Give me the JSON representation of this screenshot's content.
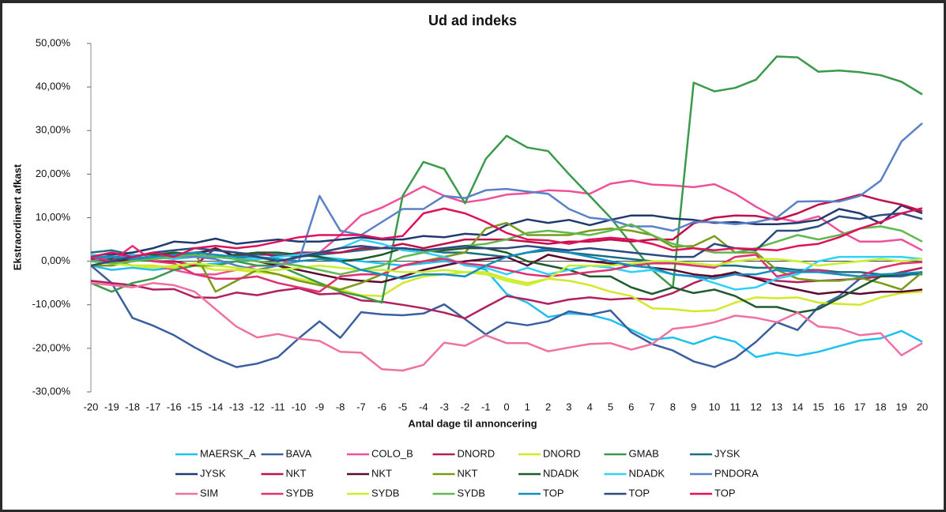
{
  "chart_data": {
    "type": "line",
    "title": "Ud ad indeks",
    "x_label": "Antal dage til annoncering",
    "y_label": "Ekstraordinært afkast",
    "x": [
      -20,
      -19,
      -18,
      -17,
      -16,
      -15,
      -14,
      -13,
      -12,
      -11,
      -10,
      -9,
      -8,
      -7,
      -6,
      -5,
      -4,
      -3,
      -2,
      -1,
      0,
      1,
      2,
      3,
      4,
      5,
      6,
      7,
      8,
      9,
      10,
      11,
      12,
      13,
      14,
      15,
      16,
      17,
      18,
      19,
      20
    ],
    "xlim": [
      -20,
      20
    ],
    "xticks": [
      -20,
      -19,
      -18,
      -17,
      -16,
      -15,
      -14,
      -13,
      -12,
      -11,
      -10,
      -9,
      -8,
      -7,
      -6,
      -5,
      -4,
      -3,
      -2,
      -1,
      0,
      1,
      2,
      3,
      4,
      5,
      6,
      7,
      8,
      9,
      10,
      11,
      12,
      13,
      14,
      15,
      16,
      17,
      18,
      19,
      20
    ],
    "ylim": [
      -30,
      50
    ],
    "yticks": [
      {
        "value": -30,
        "label": "-30,00%"
      },
      {
        "value": -20,
        "label": "-20,00%"
      },
      {
        "value": -10,
        "label": "-10,00%"
      },
      {
        "value": 0,
        "label": "0,00%"
      },
      {
        "value": 10,
        "label": "10,00%"
      },
      {
        "value": 20,
        "label": "20,00%"
      },
      {
        "value": 30,
        "label": "30,00%"
      },
      {
        "value": 40,
        "label": "40,00%"
      },
      {
        "value": 50,
        "label": "50,00%"
      }
    ],
    "grid": false,
    "legend": "bottom",
    "series": [
      {
        "name": "MAERSK_A",
        "color": "#1fc0f0",
        "values": [
          -1,
          -2,
          -1.5,
          -2,
          -1.5,
          -1,
          -0.5,
          0,
          0.5,
          1,
          1.5,
          1,
          0.5,
          0,
          -0.5,
          -1,
          -0.5,
          0,
          -0.5,
          -2,
          -7.5,
          -9.5,
          -12.8,
          -12,
          -12.3,
          -13.5,
          -15.7,
          -18,
          -17.5,
          -19,
          -17.3,
          -18.5,
          -22,
          -21,
          -21.7,
          -20.8,
          -19.5,
          -18.2,
          -17.7,
          -16,
          -18.5
        ]
      },
      {
        "name": "BAVA",
        "color": "#3a5fa0",
        "values": [
          -1,
          -5,
          -13,
          -14.8,
          -17,
          -19.8,
          -22.3,
          -24.3,
          -23.5,
          -22,
          -17.7,
          -13.8,
          -17.6,
          -11.7,
          -12.2,
          -12.4,
          -12,
          -9.9,
          -13.3,
          -16.8,
          -14,
          -14.7,
          -13.8,
          -11.5,
          -12.3,
          -11.3,
          -16.3,
          -19,
          -20.5,
          -23,
          -24.3,
          -22.2,
          -18.5,
          -14,
          -15.8,
          -10.5,
          -8,
          -4,
          -3.5,
          -3.5,
          -2.5
        ]
      },
      {
        "name": "COLO_B",
        "color": "#f0509a",
        "values": [
          1,
          0,
          -1,
          -1,
          -2,
          -3,
          -3,
          -2,
          -1,
          -1,
          1,
          2,
          6,
          10.5,
          12.3,
          14.7,
          17.2,
          15,
          13.5,
          14.2,
          15.3,
          15.6,
          16.3,
          16.1,
          15.5,
          17.8,
          18.5,
          17.6,
          17.4,
          17,
          17.7,
          15.5,
          12.5,
          10,
          9,
          10.3,
          7,
          4.5,
          4.5,
          5,
          2.5
        ]
      },
      {
        "name": "DNORD",
        "color": "#b0205f",
        "values": [
          -4.5,
          -5,
          -5.5,
          -6.5,
          -6.4,
          -8.3,
          -8.4,
          -7.2,
          -7.8,
          -6.8,
          -6.2,
          -7.6,
          -7.4,
          -9,
          -9.3,
          -10,
          -10.8,
          -11.8,
          -13.1,
          -10.5,
          -8,
          -8.8,
          -9.8,
          -8.8,
          -8.3,
          -8.8,
          -8.5,
          -8.8,
          -7.3,
          -5,
          -3.3,
          -3,
          -3.8,
          -4.5,
          -4.8,
          -4.5,
          -4.3,
          -4,
          -3.5,
          -2.5,
          -1.5
        ]
      },
      {
        "name": "DNORD",
        "color": "#d4e82a",
        "values": [
          0,
          -0.5,
          -1,
          -1,
          -1.5,
          -1,
          -2,
          -2,
          -2.5,
          -3,
          -4,
          -5,
          -6.5,
          -7.8,
          -8,
          -5,
          -3.5,
          -3,
          -2.5,
          -2.5,
          -4,
          -5,
          -4,
          -4.5,
          -5.5,
          -7,
          -8,
          -10.8,
          -11,
          -11.5,
          -11.3,
          -9.5,
          -8.3,
          -8.5,
          -8.3,
          -9.5,
          -9.8,
          -10,
          -8.3,
          -7.3,
          -7
        ]
      },
      {
        "name": "GMAB",
        "color": "#3a9a4a",
        "values": [
          -5,
          -7,
          -5,
          -4,
          -2,
          -1,
          -1,
          0,
          -1,
          -1,
          -3,
          -5,
          -7,
          -8,
          -9.5,
          15,
          22.8,
          21.2,
          13.3,
          23.5,
          28.8,
          26.1,
          25.3,
          20,
          15,
          10,
          4,
          -2,
          -6,
          41,
          39,
          39.8,
          41.7,
          47,
          46.8,
          43.5,
          43.8,
          43.4,
          42.7,
          41.2,
          38.3
        ]
      },
      {
        "name": "JYSK",
        "color": "#1a6e80",
        "values": [
          2,
          2.5,
          1.5,
          1,
          1.5,
          2,
          2.5,
          2,
          1.5,
          1.5,
          1,
          1.5,
          2,
          2.5,
          3,
          3,
          2.5,
          2,
          2,
          1.5,
          1,
          2,
          2.5,
          2,
          1.5,
          1,
          0.5,
          0,
          -0.5,
          -0.5,
          -1,
          -1,
          -1.5,
          -1.5,
          -2,
          -2,
          -2.5,
          -2.5,
          -3,
          -3,
          -3
        ]
      },
      {
        "name": "JYSK",
        "color": "#1e3a6e",
        "values": [
          1,
          1.5,
          2,
          3,
          4.5,
          4.2,
          5.2,
          4,
          4.5,
          5,
          4.5,
          4.5,
          5,
          5.5,
          5,
          5,
          5.8,
          5.5,
          6.3,
          6,
          8.3,
          9.6,
          8.8,
          9.5,
          8.3,
          9.5,
          10.5,
          10.5,
          9.8,
          9.5,
          8.8,
          9,
          8.5,
          8.5,
          8.8,
          9.5,
          12,
          11,
          8.7,
          12.8,
          11
        ]
      },
      {
        "name": "NKT",
        "color": "#c0104a",
        "values": [
          0.5,
          0,
          1,
          0,
          0,
          -1,
          3,
          1,
          2,
          1,
          2,
          2,
          2,
          3,
          3,
          4,
          3,
          4,
          5,
          5,
          5,
          4.5,
          4,
          4.5,
          4.5,
          5,
          4.5,
          5,
          5,
          8.7,
          10,
          10.5,
          10.4,
          9.5,
          11,
          13,
          14,
          15.3,
          14,
          13,
          11.5
        ]
      },
      {
        "name": "NKT",
        "color": "#5a0a30",
        "values": [
          1,
          0,
          0.5,
          1,
          2,
          1.5,
          3,
          1,
          0,
          -1,
          -2,
          -3,
          -4,
          -4.5,
          -4.8,
          -3.5,
          -2,
          -1,
          0,
          0.5,
          1,
          -1,
          1.5,
          0.5,
          0,
          -0.5,
          -1,
          -1.5,
          -2,
          -3,
          -3.5,
          -2.5,
          -4,
          -5.5,
          -6.5,
          -7.5,
          -7,
          -7.5,
          -7,
          -7,
          -6.5
        ]
      },
      {
        "name": "NKT",
        "color": "#7a9a1a",
        "values": [
          -1,
          -1,
          0,
          0.5,
          1,
          2,
          -7,
          -4.5,
          -2,
          -3,
          -4.5,
          -5.5,
          -6.5,
          -5,
          -3,
          -1,
          0,
          1,
          2,
          7.5,
          8.8,
          6,
          6,
          6,
          7,
          7.5,
          7,
          6,
          3.3,
          3.5,
          5.8,
          2,
          2,
          -2,
          -4,
          -4.5,
          -4.5,
          -3.8,
          -5,
          -6.5,
          -2.5
        ]
      },
      {
        "name": "NDADK",
        "color": "#1e5a2e",
        "values": [
          1,
          0.5,
          1,
          1.5,
          2,
          1.5,
          1,
          1.5,
          2,
          2,
          1.5,
          1,
          0,
          0.5,
          1.5,
          3,
          2.5,
          2.5,
          3,
          3,
          2,
          0,
          -1,
          -2,
          -3.5,
          -3.5,
          -6,
          -7.5,
          -6,
          -7.3,
          -6.5,
          -8,
          -10.5,
          -10.5,
          -11.8,
          -11,
          -8.5,
          -6,
          -3.5,
          -3,
          -2.5
        ]
      },
      {
        "name": "NDADK",
        "color": "#30d0f8",
        "values": [
          1.5,
          1,
          1.5,
          1,
          0.5,
          1,
          1,
          0.5,
          0.5,
          1,
          1.5,
          2,
          3,
          5,
          4,
          2.5,
          2,
          1,
          -1,
          -1.5,
          -3,
          -1.5,
          -3,
          -2,
          -1,
          -1.5,
          -2.5,
          -2,
          -3,
          -3.5,
          -5,
          -6.5,
          -6,
          -4,
          -3,
          0,
          1,
          1,
          1,
          1,
          0.5
        ]
      },
      {
        "name": "PNDORA",
        "color": "#5a80c8",
        "values": [
          0,
          1,
          1,
          0.5,
          1,
          1,
          0.5,
          -1,
          -2,
          -1,
          0,
          15,
          7,
          6,
          9,
          12,
          12,
          15,
          14.5,
          16.3,
          16.6,
          16,
          15.5,
          12,
          10,
          9.5,
          8,
          8,
          7,
          9,
          9,
          8.5,
          9,
          10,
          13.7,
          13.8,
          13.7,
          15,
          18.5,
          27.5,
          31.7
        ]
      },
      {
        "name": "SIM",
        "color": "#f070a0",
        "values": [
          -5,
          -5.5,
          -6,
          -5,
          -5.5,
          -7,
          -11,
          -15,
          -17.5,
          -16.7,
          -17.8,
          -18.3,
          -20.8,
          -21,
          -24.8,
          -25.1,
          -23.8,
          -18.7,
          -19.4,
          -17,
          -18.8,
          -18.8,
          -20.7,
          -19.8,
          -19,
          -18.8,
          -20.3,
          -19,
          -15.5,
          -15,
          -14,
          -12.5,
          -13,
          -14,
          -11.8,
          -15,
          -15.4,
          -17,
          -16.5,
          -21.6,
          -18.8
        ]
      },
      {
        "name": "SYDB",
        "color": "#e03070",
        "values": [
          1,
          0,
          3.5,
          0,
          -0.5,
          -3,
          -4,
          -4,
          -3.5,
          -5,
          -6,
          -7,
          -3.5,
          -3,
          -3,
          -1,
          0,
          0.5,
          -0.5,
          -1,
          -2,
          -3,
          -3.5,
          -3,
          -2.5,
          -2,
          -1,
          -0.5,
          -0.5,
          -1,
          -1.5,
          1,
          1.5,
          -3.5,
          -2.5,
          -2,
          -3,
          -3.5,
          -1.5,
          -0.5,
          -0.2
        ]
      },
      {
        "name": "SYDB",
        "color": "#c8f030",
        "values": [
          0,
          -0.5,
          -1,
          -1.5,
          -1,
          -0.5,
          -1,
          -1.5,
          -2,
          -2,
          -1.5,
          -1,
          -1.5,
          -2,
          -2,
          -2.5,
          -2.5,
          -2,
          -2.5,
          -3,
          -4.5,
          -5.5,
          -4,
          -1,
          -1,
          -1,
          -0.5,
          0,
          0,
          -0.5,
          -1,
          0,
          0.5,
          0.5,
          0,
          -1,
          -0.5,
          0,
          0.5,
          0,
          0.5
        ]
      },
      {
        "name": "SYDB",
        "color": "#60b850",
        "values": [
          0,
          -0.5,
          0,
          0.5,
          1,
          1.5,
          1,
          0.5,
          0,
          -0.5,
          -1,
          -2,
          -3,
          -2,
          -1,
          1,
          2,
          3,
          3.5,
          4,
          5,
          6.5,
          7,
          6.5,
          6,
          7,
          8.5,
          6,
          4,
          3,
          2,
          2,
          3,
          4.5,
          6,
          5,
          6,
          7.5,
          8,
          7,
          4.5
        ]
      },
      {
        "name": "TOP",
        "color": "#1090c0",
        "values": [
          1,
          1,
          0.5,
          1,
          1.5,
          2,
          1.5,
          1,
          1,
          0.5,
          0,
          0.5,
          0,
          -2,
          -3,
          -4,
          -3,
          -3,
          -3.5,
          -1,
          1,
          2,
          3,
          2,
          1,
          0,
          -1,
          -1.5,
          -3,
          -3.5,
          -4,
          -3,
          -3,
          -2,
          -2.5,
          -2.5,
          -3,
          -3.5,
          -3,
          -2.8,
          -2.5
        ]
      },
      {
        "name": "TOP",
        "color": "#2a4a80",
        "values": [
          -1,
          0,
          1,
          2,
          2.5,
          3,
          2.5,
          2,
          1,
          0,
          1,
          2,
          3,
          3.5,
          3,
          3,
          2.5,
          3,
          3.5,
          3,
          3,
          3.5,
          3,
          2.5,
          3,
          2.5,
          2,
          1.5,
          1,
          1,
          4,
          3,
          2.5,
          7,
          7,
          8,
          10.3,
          9.7,
          10.6,
          11,
          9.7
        ]
      },
      {
        "name": "TOP",
        "color": "#e0105a",
        "values": [
          1,
          2,
          1,
          2,
          1,
          3,
          3.5,
          3,
          3.5,
          4.5,
          5.5,
          6,
          6,
          6,
          5.2,
          5.8,
          11,
          12.1,
          11,
          9,
          6.5,
          5,
          4.8,
          4,
          5,
          5.4,
          5,
          4,
          2.5,
          3,
          2.5,
          3,
          2.8,
          2.5,
          3.5,
          4,
          5.5,
          7.5,
          9,
          11,
          12.2
        ]
      }
    ]
  }
}
